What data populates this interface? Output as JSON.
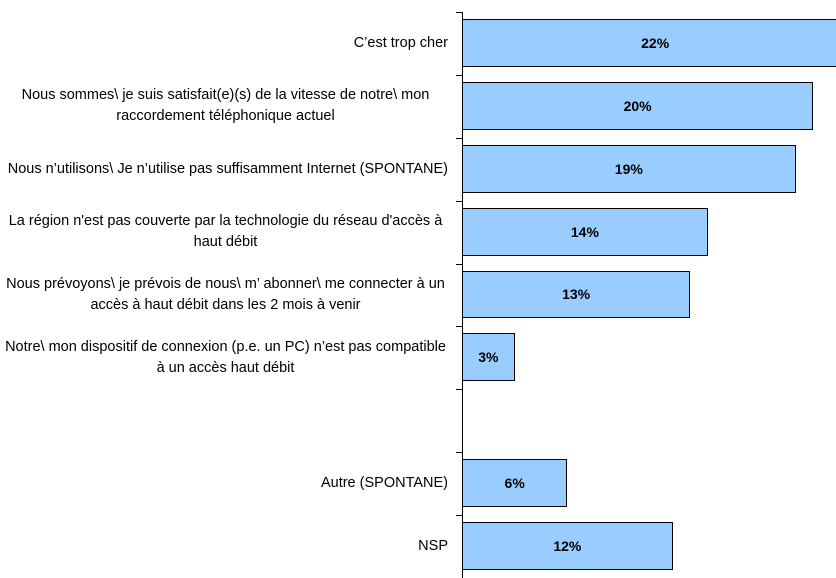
{
  "chart_data": {
    "type": "bar",
    "orientation": "horizontal",
    "categories": [
      "C’est trop cher",
      "Nous sommes\\ je suis satisfait(e)(s) de la vitesse de notre\\ mon raccordement téléphonique actuel",
      "Nous n’utilisons\\ Je n’utilise pas suffisamment Internet (SPONTANE)",
      "La région n'est pas couverte par la technologie du réseau d'accès à haut débit",
      "Nous prévoyons\\ je prévois de nous\\ m’ abonner\\ me connecter à un accès à haut débit  dans les 2 mois à venir",
      "Notre\\ mon dispositif de connexion (p.e. un PC) n’est pas compatible à un accès haut débit",
      null,
      "Autre (SPONTANE)",
      "NSP"
    ],
    "values": [
      22,
      20,
      19,
      14,
      13,
      3,
      null,
      6,
      12
    ],
    "value_labels": [
      "22%",
      "20%",
      "19%",
      "14%",
      "13%",
      "3%",
      null,
      "6%",
      "12%"
    ],
    "color": "#99ccff",
    "xlim": [
      0,
      21.3
    ]
  }
}
